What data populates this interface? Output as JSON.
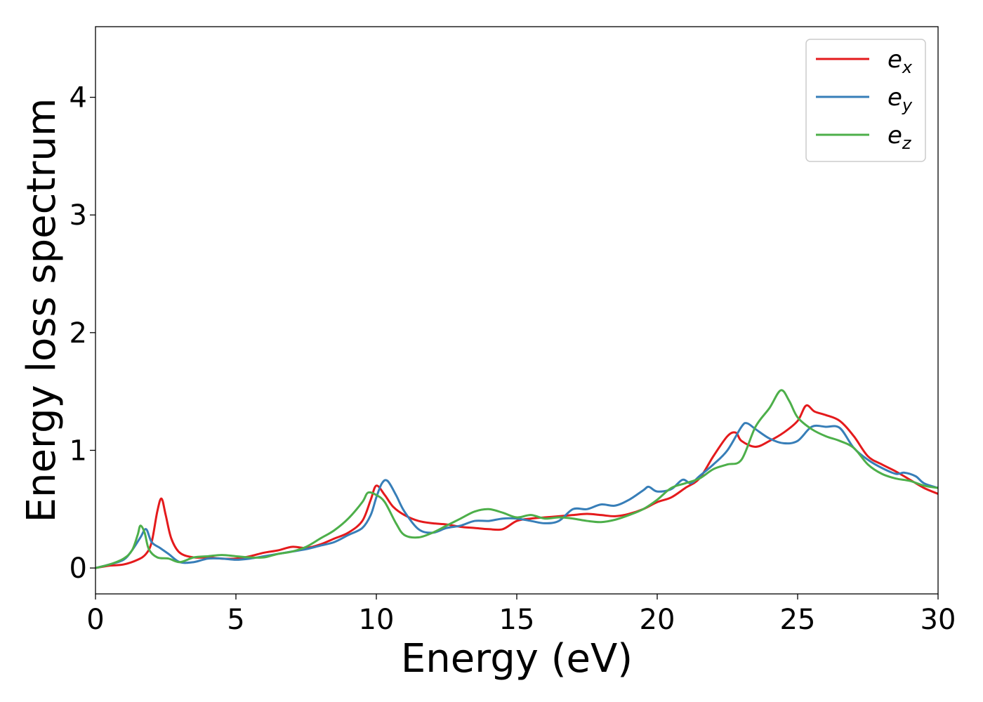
{
  "chart_data": {
    "type": "line",
    "title": "",
    "xlabel": "Energy (eV)",
    "ylabel": "Energy loss spectrum",
    "xlim": [
      0,
      30
    ],
    "ylim": [
      -0.22,
      4.6
    ],
    "xticks": [
      0,
      5,
      10,
      15,
      20,
      25,
      30
    ],
    "yticks": [
      0,
      1,
      2,
      3,
      4
    ],
    "grid": false,
    "legend_position": "top-right",
    "series": [
      {
        "name": "e_x",
        "name_base": "e",
        "name_sub": "x",
        "color": "#e41a1c",
        "x": [
          0,
          0.5,
          1.0,
          1.5,
          1.8,
          2.0,
          2.2,
          2.35,
          2.5,
          2.7,
          3.0,
          3.5,
          4.0,
          4.5,
          5.0,
          5.5,
          6.0,
          6.5,
          7.0,
          7.5,
          8.0,
          8.5,
          9.0,
          9.5,
          9.8,
          10.0,
          10.3,
          10.6,
          11.0,
          11.5,
          12.0,
          12.5,
          13.0,
          13.5,
          14.0,
          14.5,
          15.0,
          15.5,
          16.0,
          16.5,
          17.0,
          17.5,
          18.0,
          18.5,
          19.0,
          19.5,
          20.0,
          20.5,
          21.0,
          21.5,
          22.0,
          22.5,
          22.8,
          23.0,
          23.5,
          24.0,
          24.5,
          25.0,
          25.3,
          25.6,
          26.0,
          26.5,
          27.0,
          27.5,
          28.0,
          28.5,
          29.0,
          29.5,
          30.0
        ],
        "y": [
          0.0,
          0.02,
          0.03,
          0.07,
          0.12,
          0.22,
          0.48,
          0.59,
          0.45,
          0.25,
          0.13,
          0.09,
          0.09,
          0.08,
          0.08,
          0.1,
          0.13,
          0.15,
          0.18,
          0.17,
          0.2,
          0.25,
          0.3,
          0.4,
          0.58,
          0.7,
          0.62,
          0.52,
          0.45,
          0.4,
          0.38,
          0.37,
          0.35,
          0.34,
          0.33,
          0.33,
          0.4,
          0.42,
          0.43,
          0.44,
          0.45,
          0.46,
          0.45,
          0.44,
          0.46,
          0.5,
          0.56,
          0.6,
          0.68,
          0.76,
          0.95,
          1.12,
          1.15,
          1.08,
          1.03,
          1.08,
          1.15,
          1.25,
          1.38,
          1.33,
          1.3,
          1.25,
          1.12,
          0.95,
          0.88,
          0.82,
          0.75,
          0.68,
          0.63
        ]
      },
      {
        "name": "e_y",
        "name_base": "e",
        "name_sub": "y",
        "color": "#377eb8",
        "x": [
          0,
          0.5,
          1.0,
          1.3,
          1.6,
          1.8,
          2.0,
          2.3,
          2.6,
          3.0,
          3.5,
          4.0,
          4.5,
          5.0,
          5.5,
          6.0,
          6.5,
          7.0,
          7.5,
          8.0,
          8.5,
          9.0,
          9.5,
          9.8,
          10.0,
          10.2,
          10.4,
          10.7,
          11.0,
          11.5,
          12.0,
          12.5,
          13.0,
          13.5,
          14.0,
          14.5,
          15.0,
          15.5,
          16.0,
          16.5,
          17.0,
          17.5,
          18.0,
          18.5,
          19.0,
          19.5,
          19.7,
          20.0,
          20.5,
          20.9,
          21.2,
          21.5,
          22.0,
          22.5,
          23.0,
          23.2,
          23.5,
          24.0,
          24.5,
          25.0,
          25.5,
          26.0,
          26.5,
          27.0,
          27.5,
          28.0,
          28.5,
          28.8,
          29.2,
          29.5,
          30.0
        ],
        "y": [
          0.0,
          0.03,
          0.07,
          0.15,
          0.26,
          0.33,
          0.22,
          0.17,
          0.12,
          0.05,
          0.05,
          0.08,
          0.08,
          0.07,
          0.08,
          0.1,
          0.12,
          0.14,
          0.16,
          0.19,
          0.22,
          0.28,
          0.34,
          0.45,
          0.6,
          0.72,
          0.74,
          0.62,
          0.48,
          0.33,
          0.3,
          0.34,
          0.36,
          0.4,
          0.4,
          0.42,
          0.42,
          0.4,
          0.38,
          0.4,
          0.5,
          0.5,
          0.54,
          0.53,
          0.58,
          0.66,
          0.69,
          0.65,
          0.67,
          0.75,
          0.72,
          0.78,
          0.88,
          1.0,
          1.2,
          1.23,
          1.18,
          1.1,
          1.06,
          1.08,
          1.2,
          1.2,
          1.19,
          1.02,
          0.92,
          0.85,
          0.8,
          0.81,
          0.78,
          0.72,
          0.68
        ]
      },
      {
        "name": "e_z",
        "name_base": "e",
        "name_sub": "z",
        "color": "#4daf4a",
        "x": [
          0,
          0.5,
          1.0,
          1.3,
          1.5,
          1.6,
          1.75,
          1.9,
          2.2,
          2.6,
          3.0,
          3.5,
          4.0,
          4.5,
          5.0,
          5.5,
          6.0,
          6.5,
          7.0,
          7.5,
          8.0,
          8.5,
          9.0,
          9.5,
          9.7,
          10.0,
          10.3,
          10.7,
          11.0,
          11.5,
          12.0,
          12.5,
          13.0,
          13.5,
          14.0,
          14.5,
          15.0,
          15.5,
          16.0,
          16.5,
          17.0,
          17.5,
          18.0,
          18.5,
          19.0,
          19.5,
          20.0,
          20.5,
          21.0,
          21.5,
          22.0,
          22.5,
          23.0,
          23.5,
          24.0,
          24.4,
          24.7,
          25.0,
          25.5,
          26.0,
          26.5,
          27.0,
          27.5,
          28.0,
          28.5,
          29.0,
          29.5,
          30.0
        ],
        "y": [
          0.0,
          0.03,
          0.08,
          0.15,
          0.28,
          0.36,
          0.3,
          0.16,
          0.09,
          0.08,
          0.05,
          0.09,
          0.1,
          0.11,
          0.1,
          0.09,
          0.09,
          0.12,
          0.14,
          0.18,
          0.25,
          0.32,
          0.42,
          0.56,
          0.64,
          0.62,
          0.56,
          0.38,
          0.28,
          0.26,
          0.3,
          0.36,
          0.42,
          0.48,
          0.5,
          0.47,
          0.43,
          0.45,
          0.42,
          0.43,
          0.42,
          0.4,
          0.39,
          0.41,
          0.45,
          0.5,
          0.58,
          0.68,
          0.72,
          0.76,
          0.84,
          0.88,
          0.92,
          1.2,
          1.36,
          1.51,
          1.42,
          1.28,
          1.18,
          1.12,
          1.08,
          1.02,
          0.88,
          0.8,
          0.76,
          0.74,
          0.7,
          0.68
        ]
      }
    ]
  }
}
